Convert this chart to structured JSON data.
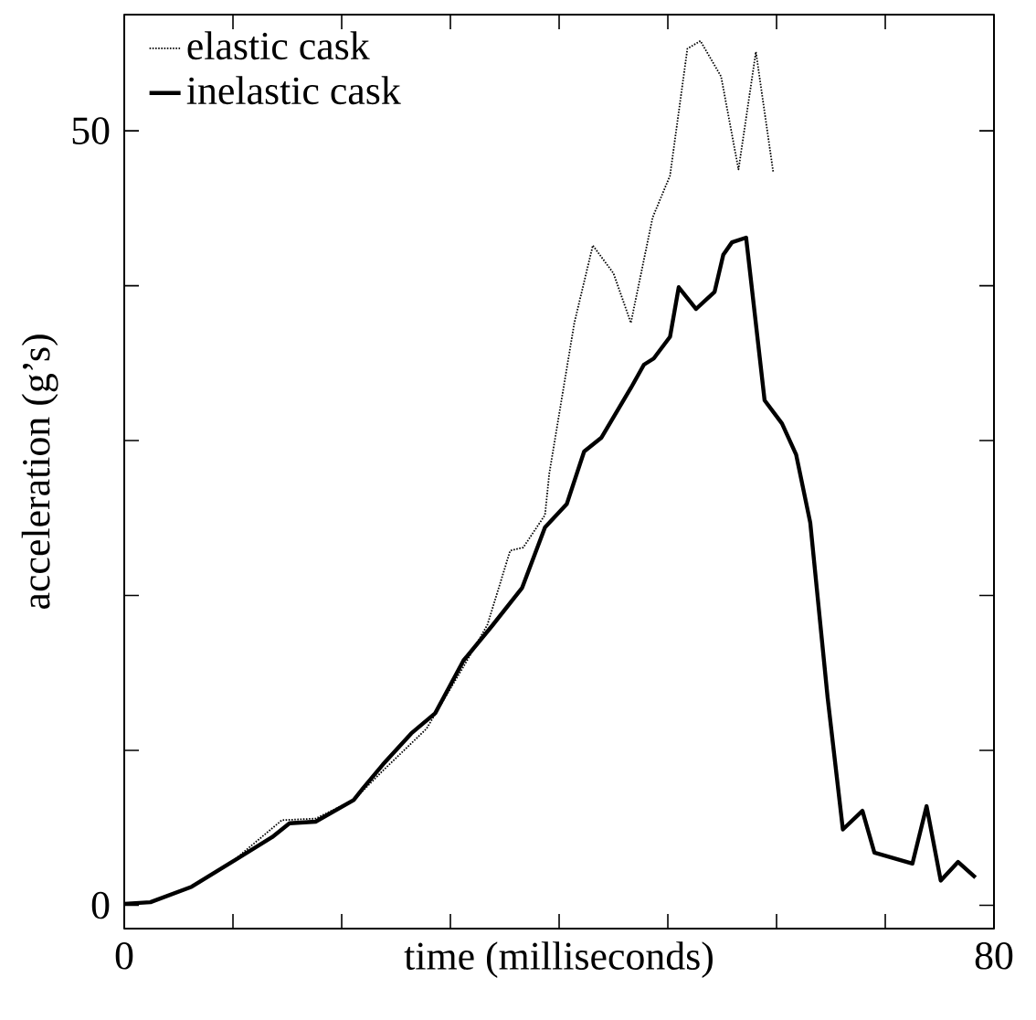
{
  "chart_data": {
    "type": "line",
    "xlabel": "time (milliseconds)",
    "ylabel": "acceleration (g’s)",
    "xlim": [
      0,
      80
    ],
    "ylim": [
      -1.5,
      57.5
    ],
    "xticks": [
      0,
      {
        "value": 10,
        "label": null
      },
      {
        "value": 20,
        "label": null
      },
      {
        "value": 30,
        "label": null
      },
      {
        "value": 40,
        "label": null
      },
      {
        "value": 50,
        "label": null
      },
      {
        "value": 60,
        "label": null
      },
      {
        "value": 70,
        "label": null
      },
      80
    ],
    "yticks": [
      0,
      {
        "value": 10,
        "label": null
      },
      {
        "value": 20,
        "label": null
      },
      {
        "value": 30,
        "label": null
      },
      {
        "value": 40,
        "label": null
      },
      50
    ],
    "grid": false,
    "legend": "top left",
    "marker": "none",
    "series": [
      {
        "name": "elastic cask",
        "color": "#000000",
        "line_style": "dotted",
        "x": [
          0,
          2.4,
          6.2,
          9.9,
          14.5,
          17.6,
          21.1,
          23.8,
          27.8,
          31.2,
          33.4,
          35.5,
          36.7,
          38.7,
          39.1,
          41.4,
          43.1,
          45,
          46.6,
          48.6,
          50.2,
          51.8,
          53,
          54.9,
          56.5,
          58.1,
          59.7
        ],
        "values": [
          0.1,
          0.2,
          1.2,
          2.8,
          5.5,
          5.6,
          6.8,
          8.7,
          11.4,
          15.4,
          18.1,
          22.9,
          23.1,
          25.2,
          27.9,
          37.6,
          42.6,
          40.8,
          37.6,
          44.4,
          47.1,
          55.3,
          55.8,
          53.5,
          47.5,
          55.1,
          47.3
        ]
      },
      {
        "name": "inelastic cask",
        "color": "#000000",
        "line_style": "solid",
        "x": [
          0,
          2.4,
          6.2,
          9.9,
          13.6,
          15.2,
          17.6,
          21.1,
          21.9,
          23.8,
          26.4,
          28.6,
          31.2,
          33.9,
          36.6,
          38.7,
          40.7,
          42.3,
          43.9,
          46.6,
          47.8,
          48.7,
          50.2,
          51,
          52.6,
          54.3,
          55.1,
          55.9,
          57.2,
          58.9,
          60.5,
          61.8,
          63.1,
          64.7,
          66.1,
          67.9,
          69,
          72.5,
          73.8,
          75.1,
          76.7,
          78.3
        ],
        "values": [
          0.1,
          0.2,
          1.2,
          2.8,
          4.4,
          5.3,
          5.4,
          6.8,
          7.5,
          9.1,
          11.1,
          12.4,
          15.8,
          18.1,
          20.5,
          24.4,
          25.9,
          29.3,
          30.2,
          33.4,
          34.9,
          35.3,
          36.7,
          39.9,
          38.5,
          39.6,
          42,
          42.8,
          43.1,
          32.6,
          31.1,
          29.1,
          24.7,
          13.4,
          4.9,
          6.1,
          3.4,
          2.7,
          6.4,
          1.6,
          2.8,
          1.8
        ]
      }
    ]
  }
}
